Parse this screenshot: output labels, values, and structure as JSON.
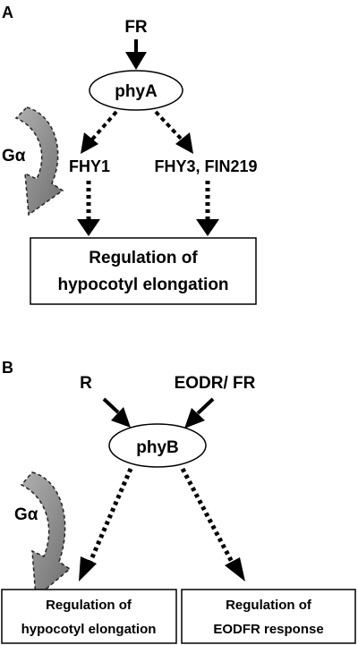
{
  "panel_a": {
    "label": "A",
    "input": "FR",
    "receptor": "phyA",
    "g_protein": "Gα",
    "left_factor": "FHY1",
    "right_factor": "FHY3, FIN219",
    "output_line1": "Regulation of",
    "output_line2": "hypocotyl elongation"
  },
  "panel_b": {
    "label": "B",
    "input_left": "R",
    "input_right": "EODR/ FR",
    "receptor": "phyB",
    "g_protein": "Gα",
    "output_left_line1": "Regulation of",
    "output_left_line2": "hypocotyl elongation",
    "output_right_line1": "Regulation of",
    "output_right_line2": "EODFR response"
  },
  "colors": {
    "line": "#000000",
    "curved_arrow_fill": "#8a8a8a",
    "background": "#ffffff"
  },
  "icons": {
    "g_protein_arrow": "curved-arrow-icon"
  }
}
